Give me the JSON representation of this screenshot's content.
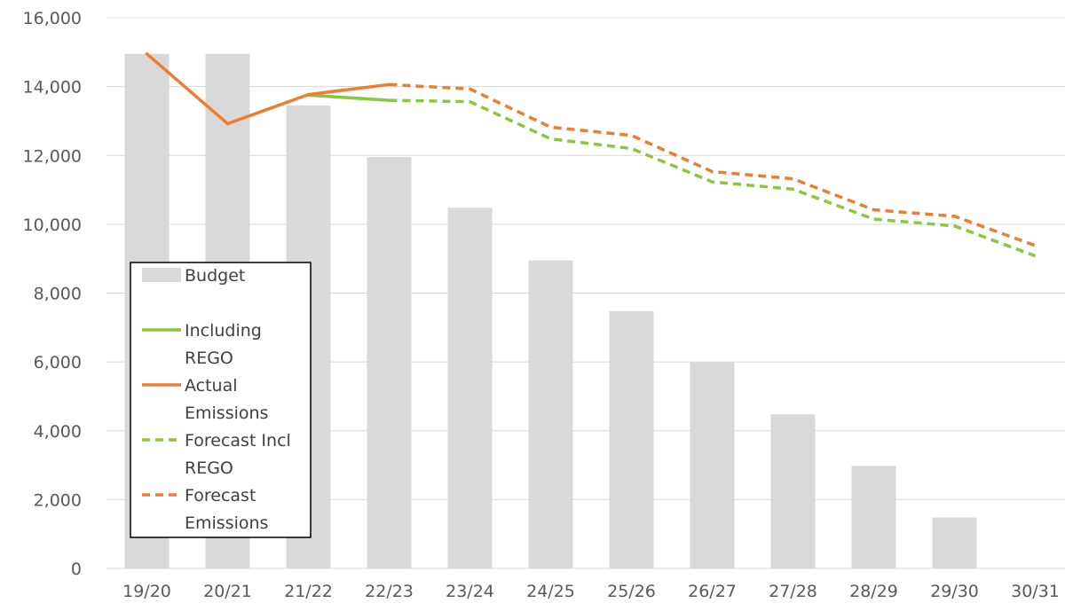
{
  "chart_data": {
    "type": "bar",
    "categories": [
      "19/20",
      "20/21",
      "21/22",
      "22/23",
      "23/24",
      "24/25",
      "25/26",
      "26/27",
      "27/28",
      "28/29",
      "29/30",
      "30/31"
    ],
    "y_ticks": [
      "0",
      "2,000",
      "4,000",
      "6,000",
      "8,000",
      "10,000",
      "12,000",
      "14,000",
      "16,000"
    ],
    "ylim": [
      0,
      16000
    ],
    "grid": true,
    "legend_position": "left-middle",
    "series": [
      {
        "name": "Budget",
        "kind": "bar",
        "color": "#d9d9d9",
        "values": [
          14950,
          14950,
          13450,
          11950,
          10480,
          8950,
          7480,
          6000,
          4480,
          2980,
          1480,
          null
        ]
      },
      {
        "name": "Including REGO",
        "kind": "line",
        "style": "solid",
        "color": "#8cc63f",
        "values": [
          null,
          null,
          13750,
          13600,
          null,
          null,
          null,
          null,
          null,
          null,
          null,
          null
        ]
      },
      {
        "name": "Actual Emissions",
        "kind": "line",
        "style": "solid",
        "color": "#ed7d31",
        "values": [
          14950,
          12920,
          13770,
          14060,
          null,
          null,
          null,
          null,
          null,
          null,
          null,
          null
        ]
      },
      {
        "name": "Forecast Incl REGO",
        "kind": "line",
        "style": "dashed",
        "color": "#8cc63f",
        "values": [
          null,
          null,
          null,
          13600,
          13560,
          12480,
          12200,
          11230,
          11020,
          10150,
          9950,
          9080
        ]
      },
      {
        "name": "Forecast Emissions",
        "kind": "line",
        "style": "dashed",
        "color": "#ed7d31",
        "values": [
          null,
          null,
          null,
          14060,
          13930,
          12820,
          12580,
          11530,
          11320,
          10420,
          10230,
          9380
        ]
      }
    ],
    "legend": {
      "items": [
        {
          "lines": [
            "Budget"
          ],
          "symbol": "bar",
          "color": "#d9d9d9"
        },
        {
          "lines": [
            "Including",
            "REGO"
          ],
          "symbol": "solid",
          "color": "#8cc63f"
        },
        {
          "lines": [
            "Actual",
            "Emissions"
          ],
          "symbol": "solid",
          "color": "#ed7d31"
        },
        {
          "lines": [
            "Forecast Incl",
            "REGO"
          ],
          "symbol": "dashed",
          "color": "#8cc63f"
        },
        {
          "lines": [
            "Forecast",
            "Emissions"
          ],
          "symbol": "dashed",
          "color": "#ed7d31"
        }
      ]
    }
  }
}
